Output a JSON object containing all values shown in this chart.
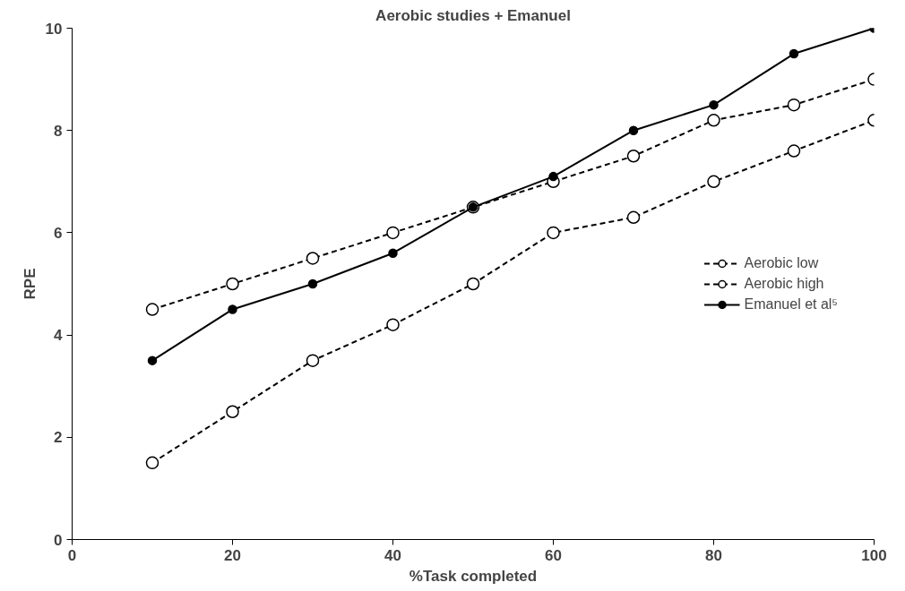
{
  "chart_data": {
    "type": "line",
    "title": "Aerobic studies + Emanuel",
    "xlabel": "%Task completed",
    "ylabel": "RPE",
    "x": [
      10,
      20,
      30,
      40,
      50,
      60,
      70,
      80,
      90,
      100
    ],
    "xlim": [
      0,
      100
    ],
    "xticks": [
      0,
      20,
      40,
      60,
      80,
      100
    ],
    "ylim": [
      0,
      10
    ],
    "yticks": [
      0,
      2,
      4,
      6,
      8,
      10
    ],
    "grid": false,
    "legend": "right",
    "marker": "circle",
    "series": [
      {
        "name": "Aerobic low",
        "color": "#000000",
        "line_style": "dashed",
        "values": [
          1.5,
          2.5,
          3.5,
          4.2,
          5,
          6,
          6.3,
          7,
          7.6,
          8.2
        ]
      },
      {
        "name": "Aerobic high",
        "color": "#000000",
        "line_style": "dashed",
        "values": [
          4.5,
          5,
          5.5,
          6,
          6.5,
          7,
          7.5,
          8.2,
          8.5,
          9
        ]
      },
      {
        "name": "Emanuel et al⁵",
        "color": "#000000",
        "line_style": "solid",
        "values": [
          3.5,
          4.5,
          5,
          5.6,
          6.5,
          7.1,
          8,
          8.5,
          9.5,
          10
        ]
      }
    ]
  }
}
